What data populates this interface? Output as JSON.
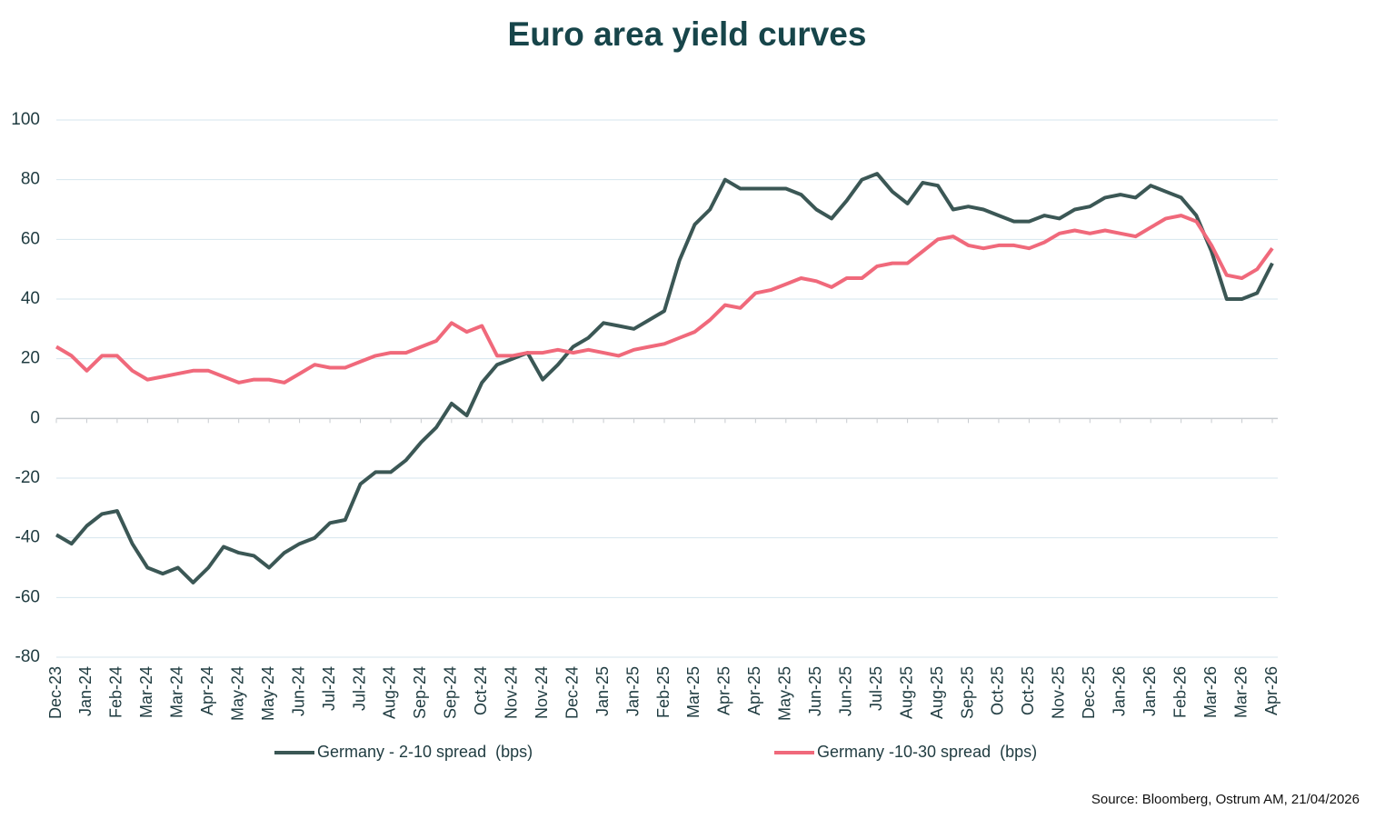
{
  "chart_data": {
    "type": "line",
    "title": "Euro area yield curves",
    "source": "Source: Bloomberg, Ostrum AM, 21/04/2026",
    "categories": [
      "Dec-23",
      null,
      "Jan-24",
      null,
      "Feb-24",
      null,
      "Mar-24",
      null,
      "Mar-24",
      null,
      "Apr-24",
      null,
      "May-24",
      null,
      "May-24",
      null,
      "Jun-24",
      null,
      "Jul-24",
      null,
      "Jul-24",
      null,
      "Aug-24",
      null,
      "Sep-24",
      null,
      "Sep-24",
      null,
      "Oct-24",
      null,
      "Nov-24",
      null,
      "Nov-24",
      null,
      "Dec-24",
      null,
      "Jan-25",
      null,
      "Jan-25",
      null,
      "Feb-25",
      null,
      "Mar-25",
      null,
      "Apr-25",
      null,
      "Apr-25",
      null,
      "May-25",
      null,
      "Jun-25",
      null,
      "Jun-25",
      null,
      "Jul-25",
      null,
      "Aug-25",
      null,
      "Aug-25",
      null,
      "Sep-25",
      null,
      "Oct-25",
      null,
      "Oct-25",
      null,
      "Nov-25",
      null,
      "Dec-25",
      null,
      "Jan-26",
      null,
      "Jan-26",
      null,
      "Feb-26",
      null,
      "Mar-26",
      null,
      "Mar-26",
      null,
      "Apr-26"
    ],
    "series": [
      {
        "name": "Germany - 2-10 spread  (bps)",
        "color": "#3b5755",
        "values": [
          -39,
          -42,
          -36,
          -32,
          -31,
          -42,
          -50,
          -52,
          -50,
          -55,
          -50,
          -43,
          -45,
          -46,
          -50,
          -45,
          -42,
          -40,
          -35,
          -34,
          -22,
          -18,
          -18,
          -14,
          -8,
          -3,
          5,
          1,
          12,
          18,
          20,
          22,
          13,
          18,
          24,
          27,
          32,
          31,
          30,
          33,
          36,
          53,
          65,
          70,
          80,
          77,
          77,
          77,
          77,
          75,
          70,
          67,
          73,
          80,
          82,
          76,
          72,
          79,
          78,
          70,
          71,
          70,
          68,
          66,
          66,
          68,
          67,
          70,
          71,
          74,
          75,
          74,
          78,
          76,
          74,
          68,
          56,
          40,
          40,
          42,
          52
        ]
      },
      {
        "name": "Germany -10-30 spread  (bps)",
        "color": "#f0697b",
        "values": [
          24,
          21,
          16,
          21,
          21,
          16,
          13,
          14,
          15,
          16,
          16,
          14,
          12,
          13,
          13,
          12,
          15,
          18,
          17,
          17,
          19,
          21,
          22,
          22,
          24,
          26,
          32,
          29,
          31,
          21,
          21,
          22,
          22,
          23,
          22,
          23,
          22,
          21,
          23,
          24,
          25,
          27,
          29,
          33,
          38,
          37,
          42,
          43,
          45,
          47,
          46,
          44,
          47,
          47,
          51,
          52,
          52,
          56,
          60,
          61,
          58,
          57,
          58,
          58,
          57,
          59,
          62,
          63,
          62,
          63,
          62,
          61,
          64,
          67,
          68,
          66,
          58,
          48,
          47,
          50,
          57
        ]
      }
    ],
    "ylim": [
      -80,
      100
    ],
    "yticks": [
      -80,
      -60,
      -40,
      -20,
      0,
      20,
      40,
      60,
      80,
      100
    ],
    "grid": true,
    "legend": "bottom"
  }
}
